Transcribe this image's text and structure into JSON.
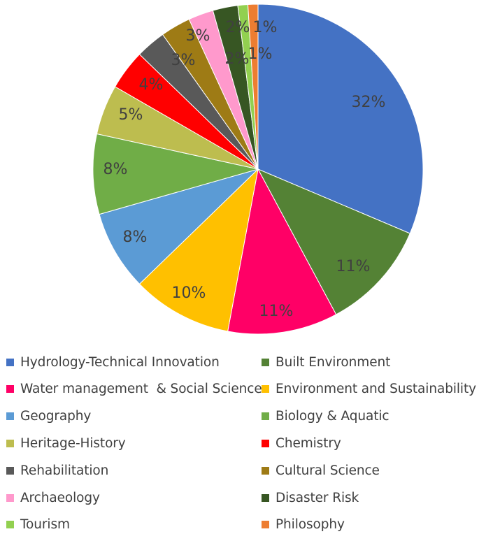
{
  "chart_data": {
    "type": "pie",
    "title": "",
    "legend_position": "bottom",
    "start_angle_deg": 0,
    "direction": "clockwise",
    "slices": [
      {
        "label": "Hydrology-Technical Innovation",
        "value": 32,
        "display": "32%",
        "color": "#4472C4"
      },
      {
        "label": "Built Environment",
        "value": 11,
        "display": "11%",
        "color": "#548235"
      },
      {
        "label": "Water management  & Social Science",
        "value": 11,
        "display": "11%",
        "color": "#FF0066"
      },
      {
        "label": "Environment and Sustainability",
        "value": 10,
        "display": "10%",
        "color": "#FFC000"
      },
      {
        "label": "Geography",
        "value": 8,
        "display": "8%",
        "color": "#5B9BD5"
      },
      {
        "label": "Biology & Aquatic",
        "value": 8,
        "display": "8%",
        "color": "#70AD47"
      },
      {
        "label": "Heritage-History",
        "value": 5,
        "display": "5%",
        "color": "#BDBD4F"
      },
      {
        "label": "Chemistry",
        "value": 4,
        "display": "4%",
        "color": "#FF0000"
      },
      {
        "label": "Rehabilitation",
        "value": 3,
        "display": "3%",
        "color": "#595959"
      },
      {
        "label": "Cultural Science",
        "value": 3,
        "display": "3%",
        "color": "#9E7B15"
      },
      {
        "label": "Archaeology",
        "value": 2.5,
        "display": "2%",
        "color": "#FF99CC"
      },
      {
        "label": "Disaster Risk",
        "value": 2.5,
        "display": "2%",
        "color": "#375623"
      },
      {
        "label": "Tourism",
        "value": 1,
        "display": "1%",
        "color": "#92D050"
      },
      {
        "label": "Philosophy",
        "value": 1,
        "display": "1%",
        "color": "#ED7D31"
      }
    ]
  }
}
